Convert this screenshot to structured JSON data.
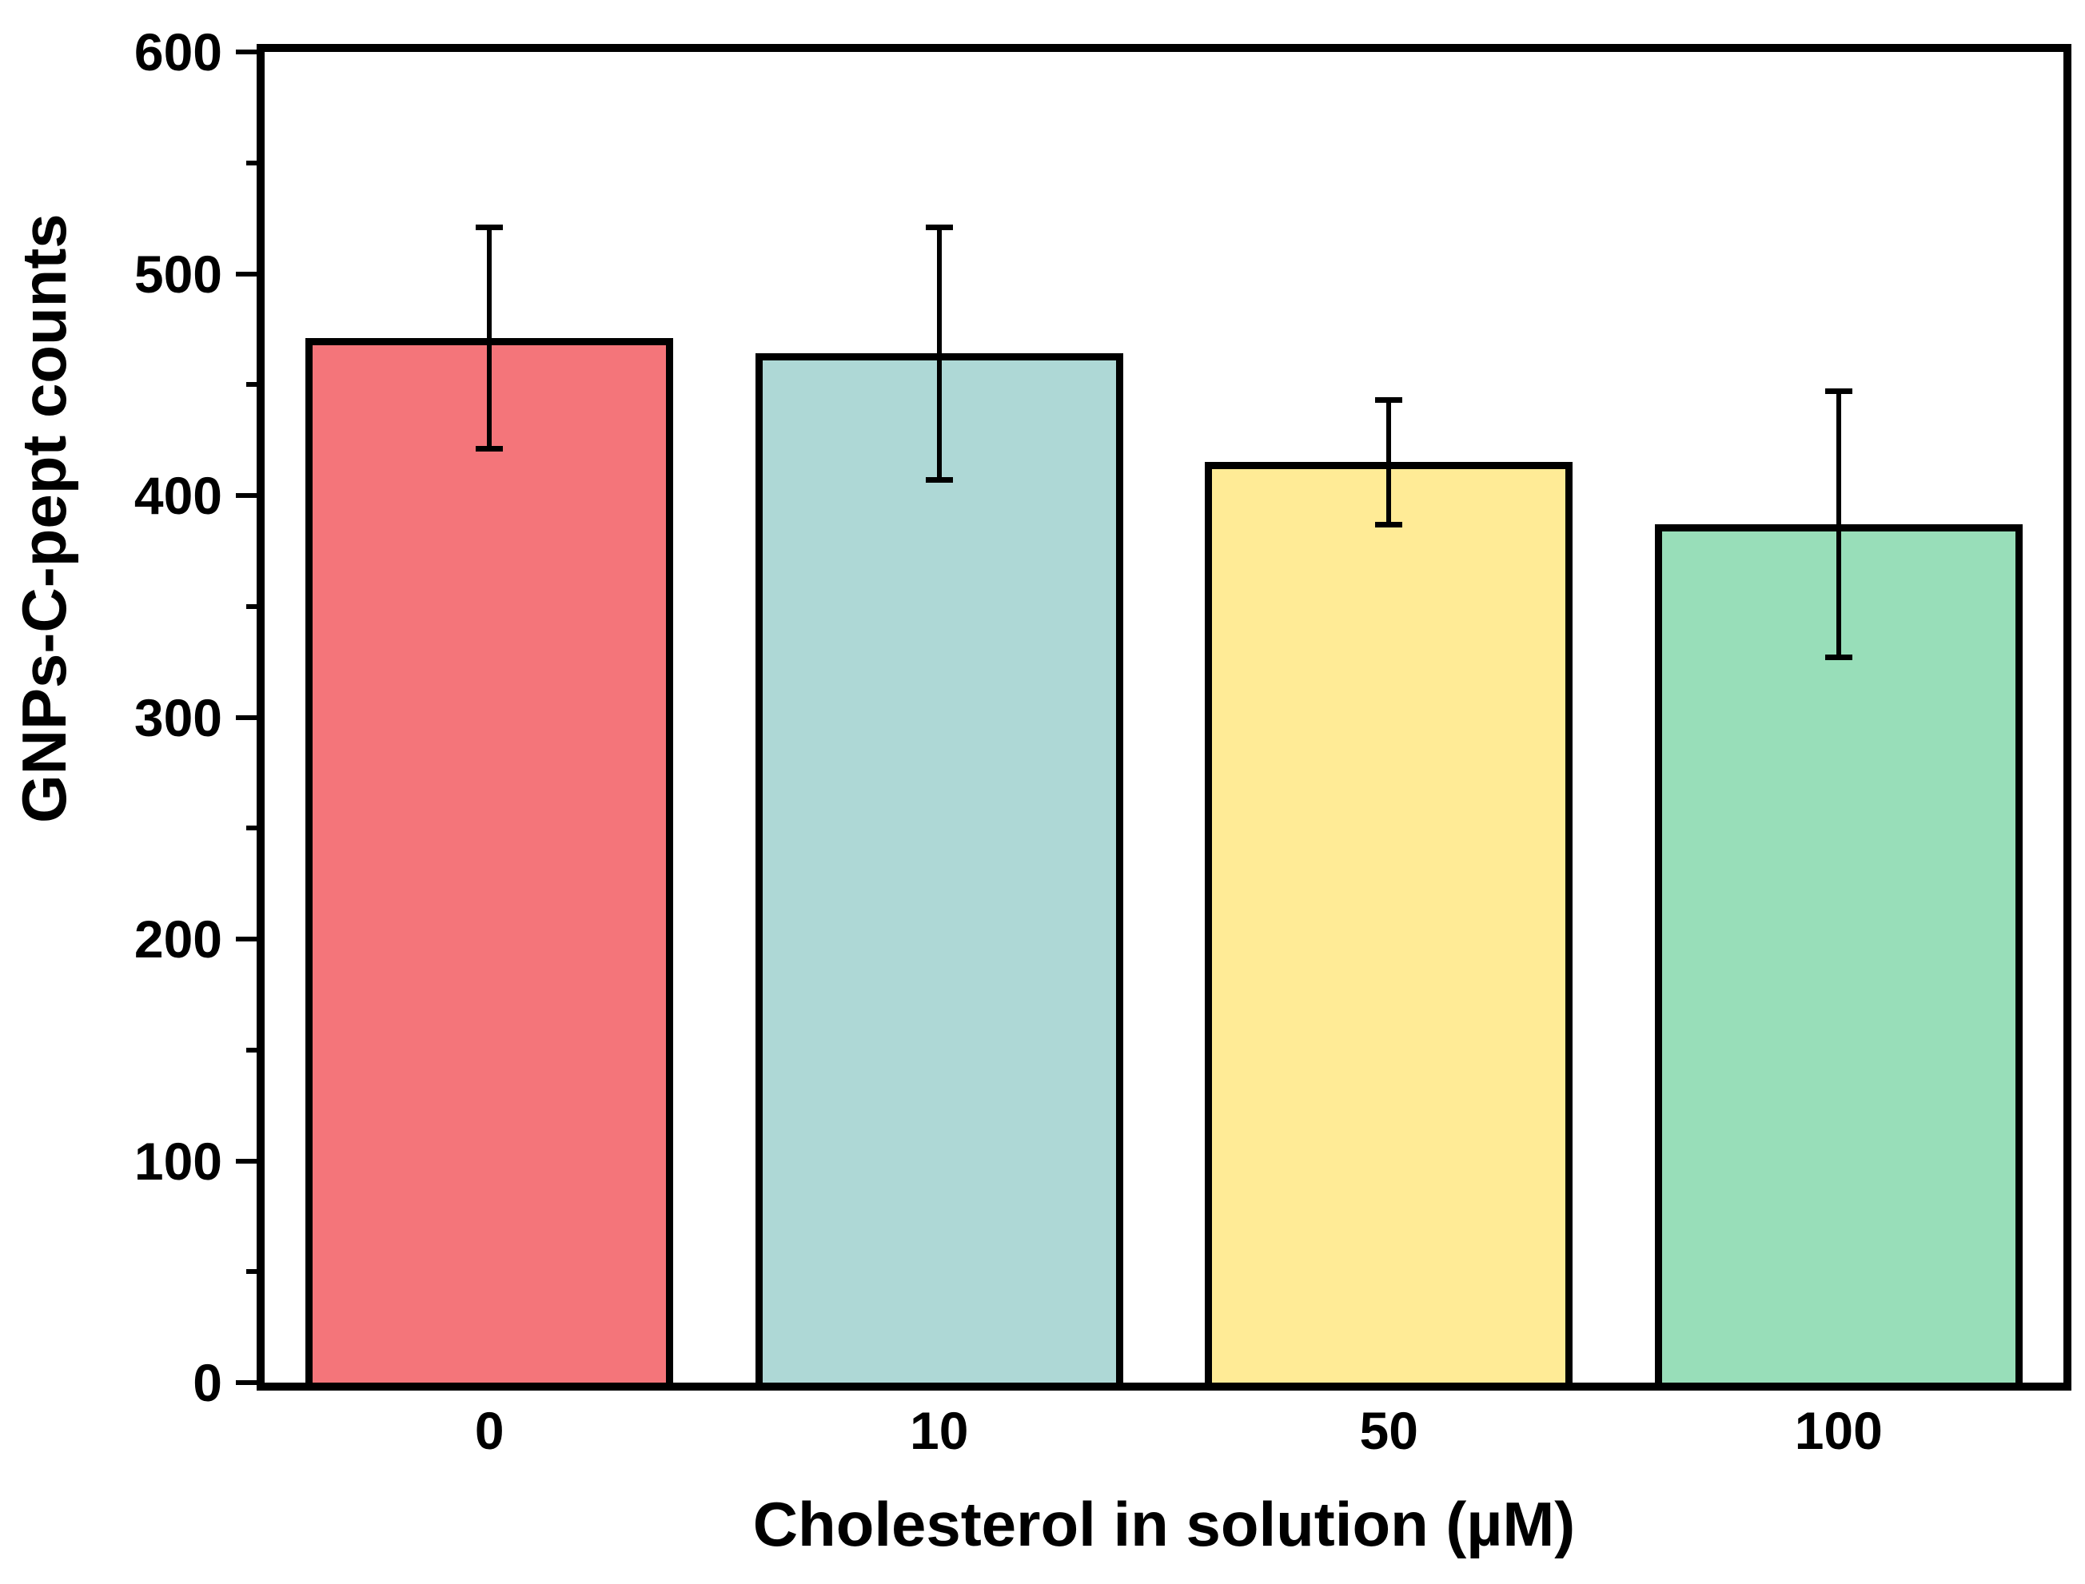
{
  "figure": {
    "y_axis_title": "GNPs-C-pept counts",
    "x_axis_title": "Cholesterol in solution (µM)"
  },
  "chart_data": {
    "type": "bar",
    "title": "",
    "xlabel": "Cholesterol in solution (µM)",
    "ylabel": "GNPs-C-pept counts",
    "categories": [
      "0",
      "10",
      "50",
      "100"
    ],
    "values": [
      471,
      464,
      415,
      387
    ],
    "errors": [
      50,
      57,
      28,
      60
    ],
    "error_caps_upper": [
      521,
      521,
      443,
      447
    ],
    "error_caps_lower": [
      421,
      407,
      387,
      327
    ],
    "bar_colors": [
      "#F4757A",
      "#AED8D6",
      "#FFEB96",
      "#98DEB9"
    ],
    "edge_color": "#000000",
    "ylim": [
      0,
      600
    ],
    "y_major_ticks": [
      0,
      100,
      200,
      300,
      400,
      500,
      600
    ],
    "y_minor_step": 50,
    "grid": false,
    "legend_position": "none",
    "error_bar_style": "both-directions-with-caps"
  }
}
